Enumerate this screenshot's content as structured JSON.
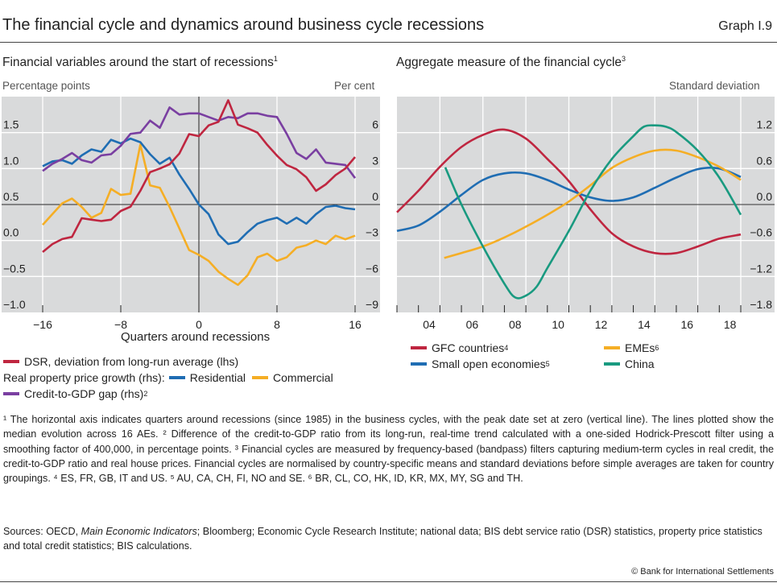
{
  "header": {
    "title": "The financial cycle and dynamics around business cycle recessions",
    "graph_number": "Graph I.9"
  },
  "colors": {
    "dsr": "#bf2640",
    "residential": "#1f6db3",
    "commercial": "#f5ae25",
    "credit_gap": "#7a3fa1",
    "gfc": "#bf2640",
    "small_open": "#1f6db3",
    "emes": "#f5ae25",
    "china": "#199a80",
    "plot_bg": "#d9dadb"
  },
  "chart_data": [
    {
      "type": "line",
      "title": "Financial variables around the start of recessions",
      "title_sup": "1",
      "ylabel": "Percentage points",
      "ylabel_right": "Per cent",
      "xlabel": "Quarters around recessions",
      "xlim": [
        -16,
        16
      ],
      "ylim": [
        -1.0,
        2.0
      ],
      "ylim_right": [
        -9,
        9
      ],
      "x_ticks": [
        {
          "v": -16,
          "label": "−16"
        },
        {
          "v": -8,
          "label": "−8"
        },
        {
          "v": 0,
          "label": "0"
        },
        {
          "v": 8,
          "label": "8"
        },
        {
          "v": 16,
          "label": "16"
        }
      ],
      "y_ticks": [
        {
          "v": 1.5,
          "label": "1.5"
        },
        {
          "v": 1.0,
          "label": "1.0"
        },
        {
          "v": 0.5,
          "label": "0.5"
        },
        {
          "v": 0.0,
          "label": "0.0"
        },
        {
          "v": -0.5,
          "label": "−0.5"
        },
        {
          "v": -1.0,
          "label": "−1.0"
        }
      ],
      "y_ticks_right": [
        {
          "v": 6,
          "label": "6"
        },
        {
          "v": 3,
          "label": "3"
        },
        {
          "v": 0,
          "label": "0"
        },
        {
          "v": -3,
          "label": "−3"
        },
        {
          "v": -6,
          "label": "−6"
        },
        {
          "v": -9,
          "label": "−9"
        }
      ],
      "x": [
        -16,
        -15,
        -14,
        -13,
        -12,
        -11,
        -10,
        -9,
        -8,
        -7,
        -6,
        -5,
        -4,
        -3,
        -2,
        -1,
        0,
        1,
        2,
        3,
        4,
        5,
        6,
        7,
        8,
        9,
        10,
        11,
        12,
        13,
        14,
        15,
        16
      ],
      "series": [
        {
          "key": "dsr",
          "name": "DSR, deviation from long-run average (lhs)",
          "axis": "left",
          "values": [
            -0.16,
            -0.05,
            0.02,
            0.05,
            0.31,
            0.29,
            0.27,
            0.29,
            0.41,
            0.47,
            0.69,
            0.95,
            1.0,
            1.06,
            1.21,
            1.48,
            1.45,
            1.6,
            1.65,
            1.95,
            1.61,
            1.56,
            1.5,
            1.33,
            1.18,
            1.05,
            0.99,
            0.88,
            0.69,
            0.78,
            0.91,
            1.0,
            1.16
          ]
        },
        {
          "key": "residential",
          "name": "Residential",
          "axis": "right",
          "values": [
            3.2,
            3.6,
            3.7,
            3.4,
            4.1,
            4.6,
            4.4,
            5.4,
            5.1,
            5.5,
            5.2,
            4.2,
            3.4,
            3.9,
            2.5,
            1.3,
            0,
            -0.8,
            -2.5,
            -3.3,
            -3.1,
            -2.3,
            -1.6,
            -1.3,
            -1.1,
            -1.6,
            -1.1,
            -1.6,
            -0.8,
            -0.2,
            -0.1,
            -0.3,
            -0.4
          ]
        },
        {
          "key": "commercial",
          "name": "Commercial",
          "axis": "right",
          "values": [
            -1.7,
            -0.8,
            0.1,
            0.5,
            -0.2,
            -1.1,
            -0.7,
            1.3,
            0.8,
            0.9,
            5.0,
            1.6,
            1.4,
            -0.2,
            -2.0,
            -3.8,
            -4.2,
            -4.7,
            -5.6,
            -6.2,
            -6.7,
            -5.9,
            -4.4,
            -4.1,
            -4.7,
            -4.4,
            -3.6,
            -3.4,
            -3.0,
            -3.3,
            -2.6,
            -2.9,
            -2.6
          ]
        },
        {
          "key": "credit_gap",
          "name": "Credit-to-GDP gap (rhs)",
          "name_sup": "2",
          "axis": "right",
          "values": [
            2.8,
            3.4,
            3.8,
            4.3,
            3.7,
            3.5,
            4.1,
            4.2,
            4.9,
            5.9,
            6.0,
            7.0,
            6.4,
            8.1,
            7.5,
            7.6,
            7.6,
            7.3,
            7.0,
            7.3,
            7.2,
            7.6,
            7.6,
            7.4,
            7.3,
            5.9,
            4.3,
            3.8,
            4.6,
            3.5,
            3.4,
            3.3,
            2.2
          ]
        }
      ],
      "legend_group_label": "Real property price growth (rhs):"
    },
    {
      "type": "line",
      "title": "Aggregate measure of the financial cycle",
      "title_sup": "3",
      "ylabel_right": "Standard deviation",
      "xlim": [
        2003,
        2019
      ],
      "ylim": [
        -1.8,
        1.8
      ],
      "x_ticks": [
        {
          "v": 2004,
          "label": "04"
        },
        {
          "v": 2006,
          "label": "06"
        },
        {
          "v": 2008,
          "label": "08"
        },
        {
          "v": 2010,
          "label": "10"
        },
        {
          "v": 2012,
          "label": "12"
        },
        {
          "v": 2014,
          "label": "14"
        },
        {
          "v": 2016,
          "label": "16"
        },
        {
          "v": 2018,
          "label": "18"
        }
      ],
      "y_ticks_right": [
        {
          "v": 1.2,
          "label": "1.2"
        },
        {
          "v": 0.6,
          "label": "0.6"
        },
        {
          "v": 0.0,
          "label": "0.0"
        },
        {
          "v": -0.6,
          "label": "−0.6"
        },
        {
          "v": -1.2,
          "label": "−1.2"
        },
        {
          "v": -1.8,
          "label": "−1.8"
        }
      ],
      "series": [
        {
          "key": "gfc",
          "name": "GFC countries",
          "name_sup": "4",
          "x": [
            2003,
            2004,
            2005,
            2006,
            2007,
            2008,
            2009,
            2010,
            2011,
            2012,
            2013,
            2014,
            2015,
            2016,
            2017,
            2018,
            2019
          ],
          "values": [
            -0.13,
            0.23,
            0.63,
            0.96,
            1.16,
            1.25,
            1.1,
            0.76,
            0.39,
            -0.08,
            -0.48,
            -0.7,
            -0.81,
            -0.81,
            -0.7,
            -0.57,
            -0.5
          ]
        },
        {
          "key": "small_open",
          "name": "Small open economies",
          "name_sup": "5",
          "x": [
            2003,
            2004,
            2005,
            2006,
            2007,
            2008,
            2009,
            2010,
            2011,
            2012,
            2013,
            2014,
            2015,
            2016,
            2017,
            2018,
            2019
          ],
          "values": [
            -0.44,
            -0.35,
            -0.12,
            0.16,
            0.41,
            0.52,
            0.52,
            0.41,
            0.25,
            0.12,
            0.06,
            0.12,
            0.28,
            0.45,
            0.59,
            0.6,
            0.46
          ]
        },
        {
          "key": "emes",
          "name": "EMEs",
          "name_sup": "6",
          "x": [
            2005.2,
            2006,
            2007,
            2008,
            2009,
            2010,
            2011,
            2012,
            2013,
            2014,
            2015,
            2016,
            2017,
            2018,
            2019
          ],
          "values": [
            -0.89,
            -0.81,
            -0.7,
            -0.55,
            -0.37,
            -0.17,
            0.05,
            0.32,
            0.61,
            0.79,
            0.9,
            0.9,
            0.79,
            0.63,
            0.41
          ]
        },
        {
          "key": "china",
          "name": "China",
          "x": [
            2005.25,
            2006,
            2007,
            2008,
            2008.5,
            2009,
            2009.5,
            2010,
            2011,
            2012,
            2013,
            2014,
            2014.5,
            2015,
            2015.5,
            2016,
            2017,
            2018,
            2019
          ],
          "values": [
            0.62,
            0,
            -0.7,
            -1.32,
            -1.55,
            -1.52,
            -1.37,
            -1.06,
            -0.44,
            0.23,
            0.76,
            1.14,
            1.3,
            1.32,
            1.3,
            1.21,
            0.9,
            0.45,
            -0.17
          ]
        }
      ]
    }
  ],
  "footnotes": "¹ The horizontal axis indicates quarters around recessions (since 1985) in the business cycles, with the peak date set at zero (vertical line). The lines plotted show the median evolution across 16 AEs.   ² Difference of the credit-to-GDP ratio from its long-run, real-time trend calculated with a one-sided Hodrick-Prescott filter using a smoothing factor of 400,000, in percentage points.   ³ Financial cycles are measured by frequency-based (bandpass) filters capturing medium-term cycles in real credit, the credit-to-GDP ratio and real house prices. Financial cycles are normalised by country-specific means and standard deviations before simple averages are taken for country groupings.   ⁴ ES, FR, GB, IT and US.   ⁵ AU, CA, CH, FI, NO and SE.   ⁶ BR, CL, CO, HK, ID, KR, MX, MY, SG and TH.",
  "sources": {
    "prefix": "Sources: OECD, ",
    "italic": "Main Economic Indicators",
    "rest": "; Bloomberg; Economic Cycle Research Institute; national data; BIS debt service ratio (DSR) statistics, property price statistics and total credit statistics; BIS calculations."
  },
  "copyright": "© Bank for International Settlements"
}
